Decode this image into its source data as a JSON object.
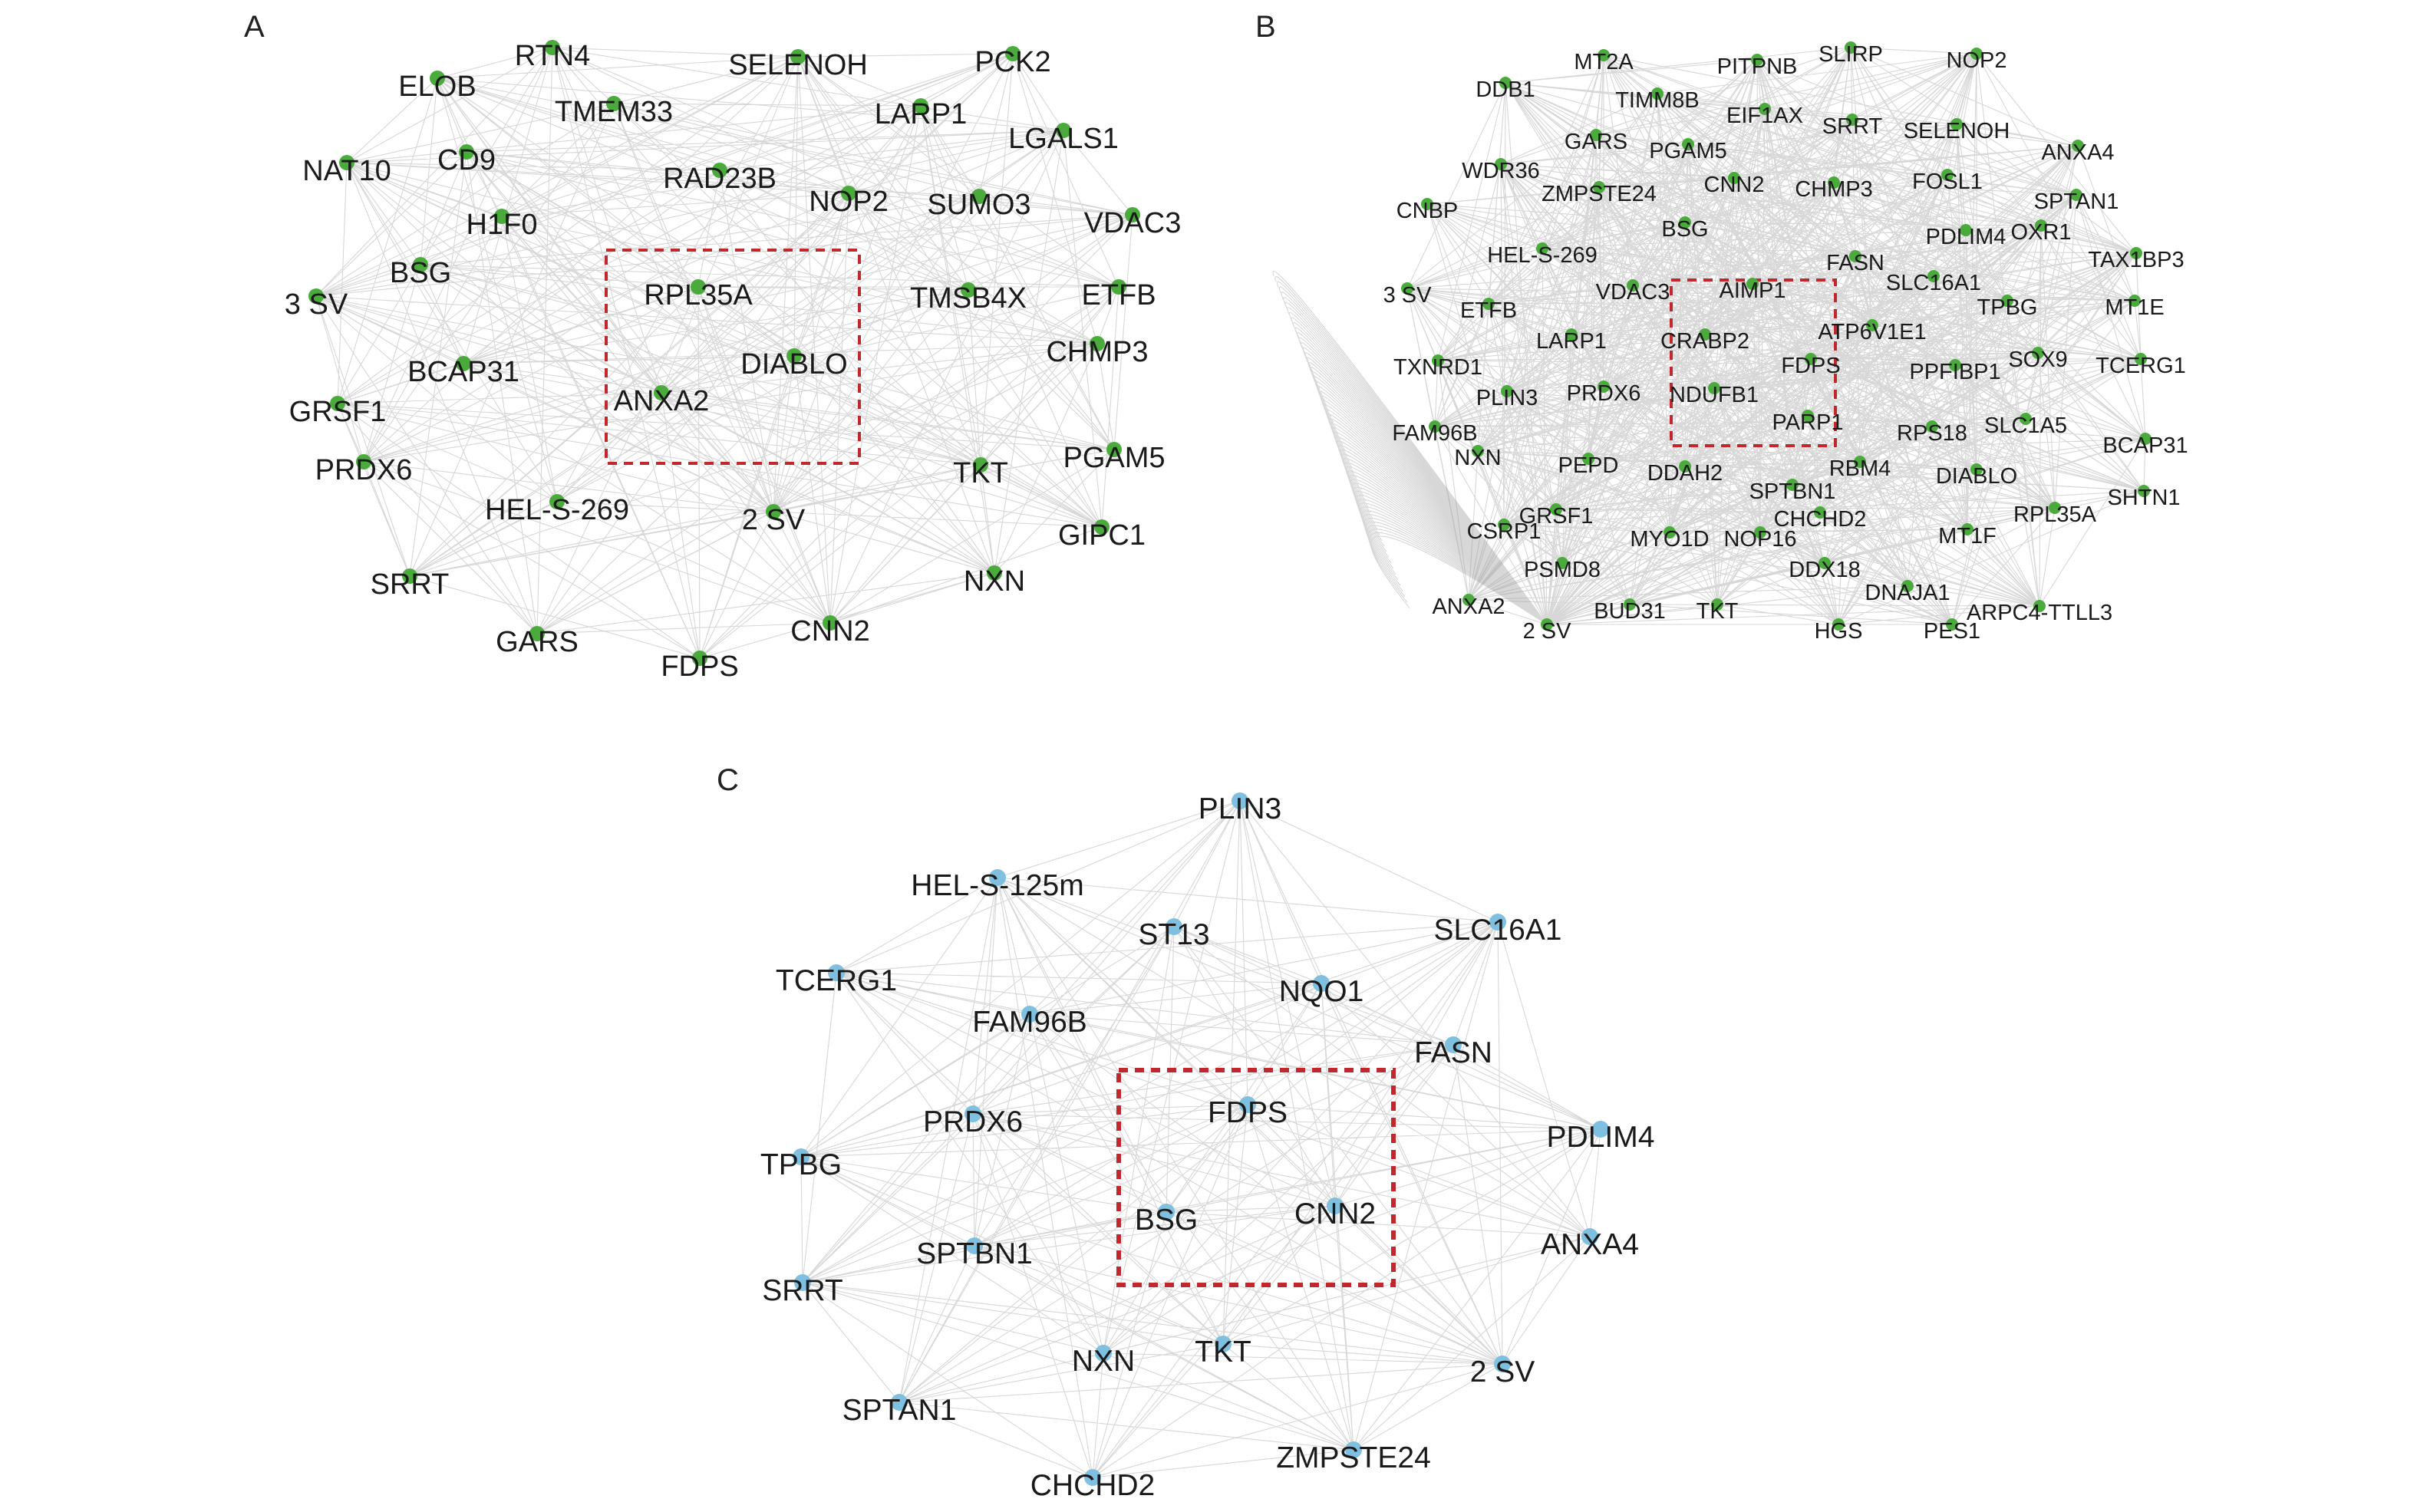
{
  "colors": {
    "node_green": "#4aaa3c",
    "node_blue": "#7fbfe0",
    "edge": "#9c9c9c",
    "highlight_box": "#c0282e",
    "label": "#1a1a1a"
  },
  "panels": [
    {
      "letter": "A",
      "node_color": "node_green",
      "highlight_nodes": [
        "RPL35A",
        "DIABLO",
        "ANXA2"
      ],
      "nodes": [
        "RTN4",
        "SELENOH",
        "PCK2",
        "ELOB",
        "TMEM33",
        "LARP1",
        "LGALS1",
        "NAT10",
        "CD9",
        "RAD23B",
        "NOP2",
        "SUMO3",
        "VDAC3",
        "H1F0",
        "BSG",
        "3 SV",
        "RPL35A",
        "TMSB4X",
        "ETFB",
        "DIABLO",
        "BCAP31",
        "CHMP3",
        "GRSF1",
        "ANXA2",
        "PRDX6",
        "TKT",
        "PGAM5",
        "HEL-S-269",
        "2 SV",
        "GIPC1",
        "SRRT",
        "NXN",
        "GARS",
        "CNN2",
        "FDPS"
      ]
    },
    {
      "letter": "B",
      "node_color": "node_green",
      "highlight_nodes": [
        "AIMP1",
        "CRABP2",
        "FDPS",
        "NDUFB1",
        "PARP1"
      ],
      "nodes": [
        "DDB1",
        "MT2A",
        "PITPNB",
        "SLIRP",
        "NOP2",
        "TIMM8B",
        "EIF1AX",
        "SRRT",
        "SELENOH",
        "GARS",
        "PGAM5",
        "ANXA4",
        "WDR36",
        "ZMPSTE24",
        "CNN2",
        "CHMP3",
        "FOSL1",
        "SPTAN1",
        "CNBP",
        "BSG",
        "PDLIM4",
        "OXR1",
        "HEL-S-269",
        "FASN",
        "TAX1BP3",
        "SLC16A1",
        "3 SV",
        "VDAC3",
        "AIMP1",
        "TPBG",
        "MT1E",
        "ETFB",
        "CRABP2",
        "ATP6V1E1",
        "LARP1",
        "TXNRD1",
        "FDPS",
        "PPFIBP1",
        "SOX9",
        "TCERG1",
        "PLIN3",
        "PRDX6",
        "NDUFB1",
        "RPS18",
        "SLC1A5",
        "PARP1",
        "FAM96B",
        "BCAP31",
        "NXN",
        "PEPD",
        "DDAH2",
        "RBM4",
        "DIABLO",
        "SPTBN1",
        "SHTN1",
        "GRSF1",
        "CHCHD2",
        "RPL35A",
        "CSRP1",
        "MYO1D",
        "NOP16",
        "MT1F",
        "PSMD8",
        "DDX18",
        "DNAJA1",
        "ANXA2",
        "BUD31",
        "TKT",
        "ARPC4-TTLL3",
        "2 SV",
        "HGS",
        "PES1"
      ]
    },
    {
      "letter": "C",
      "node_color": "node_blue",
      "highlight_nodes": [
        "FDPS",
        "BSG",
        "CNN2"
      ],
      "nodes": [
        "PLIN3",
        "HEL-S-125m",
        "ST13",
        "SLC16A1",
        "TCERG1",
        "NQO1",
        "FAM96B",
        "FASN",
        "FDPS",
        "PRDX6",
        "PDLIM4",
        "TPBG",
        "BSG",
        "CNN2",
        "SPTBN1",
        "ANXA4",
        "SRRT",
        "NXN",
        "TKT",
        "2 SV",
        "SPTAN1",
        "ZMPSTE24",
        "CHCHD2"
      ]
    }
  ]
}
